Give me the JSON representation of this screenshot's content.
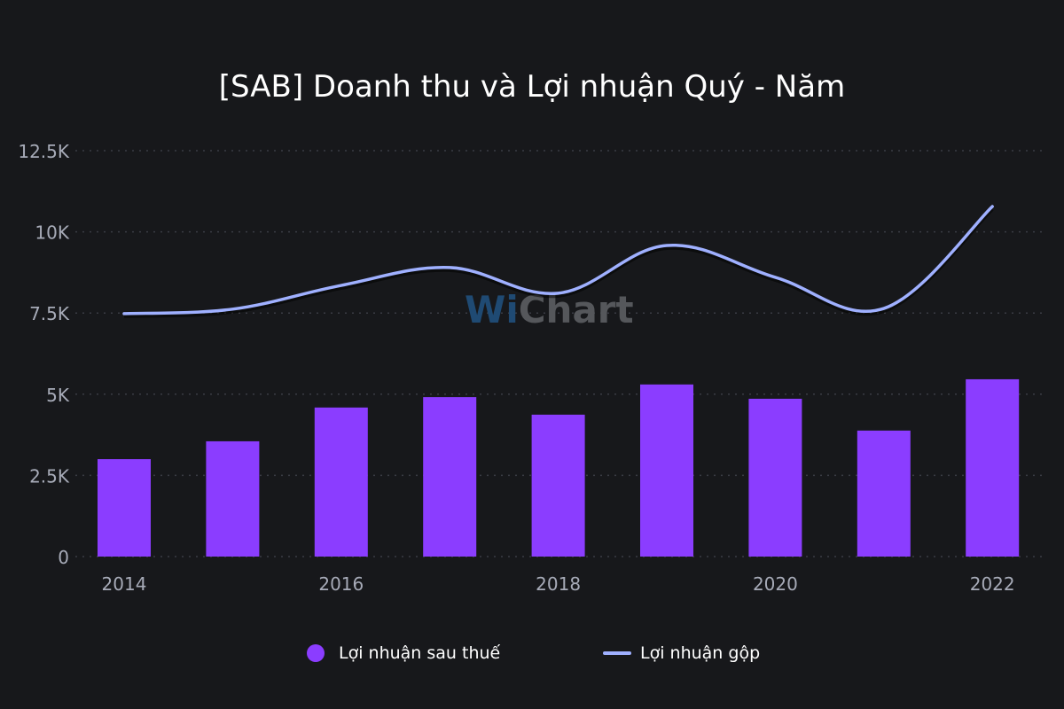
{
  "chart_data": {
    "type": "bar+line",
    "title": "[SAB] Doanh thu và Lợi nhuận Quý - Năm",
    "categories": [
      "2014",
      "2015",
      "2016",
      "2017",
      "2018",
      "2019",
      "2020",
      "2021",
      "2022"
    ],
    "x_tick_labels": [
      "2014",
      "2016",
      "2018",
      "2020",
      "2022"
    ],
    "y_tick_labels": [
      "0",
      "2.5K",
      "5K",
      "7.5K",
      "10K",
      "12.5K"
    ],
    "ylim": [
      0,
      12500
    ],
    "grid": true,
    "legend_placement": "bottom",
    "series": [
      {
        "name": "Lợi nhuận sau thuế",
        "type": "bar",
        "color": "#8b3dff",
        "values": [
          3000,
          3550,
          4590,
          4910,
          4370,
          5300,
          4860,
          3880,
          5460
        ]
      },
      {
        "name": "Lợi nhuận gộp",
        "type": "line",
        "color": "#9fb0ff",
        "values": [
          7480,
          7620,
          8350,
          8900,
          8110,
          9580,
          8600,
          7640,
          10780
        ]
      }
    ]
  },
  "watermark": "WiChart"
}
